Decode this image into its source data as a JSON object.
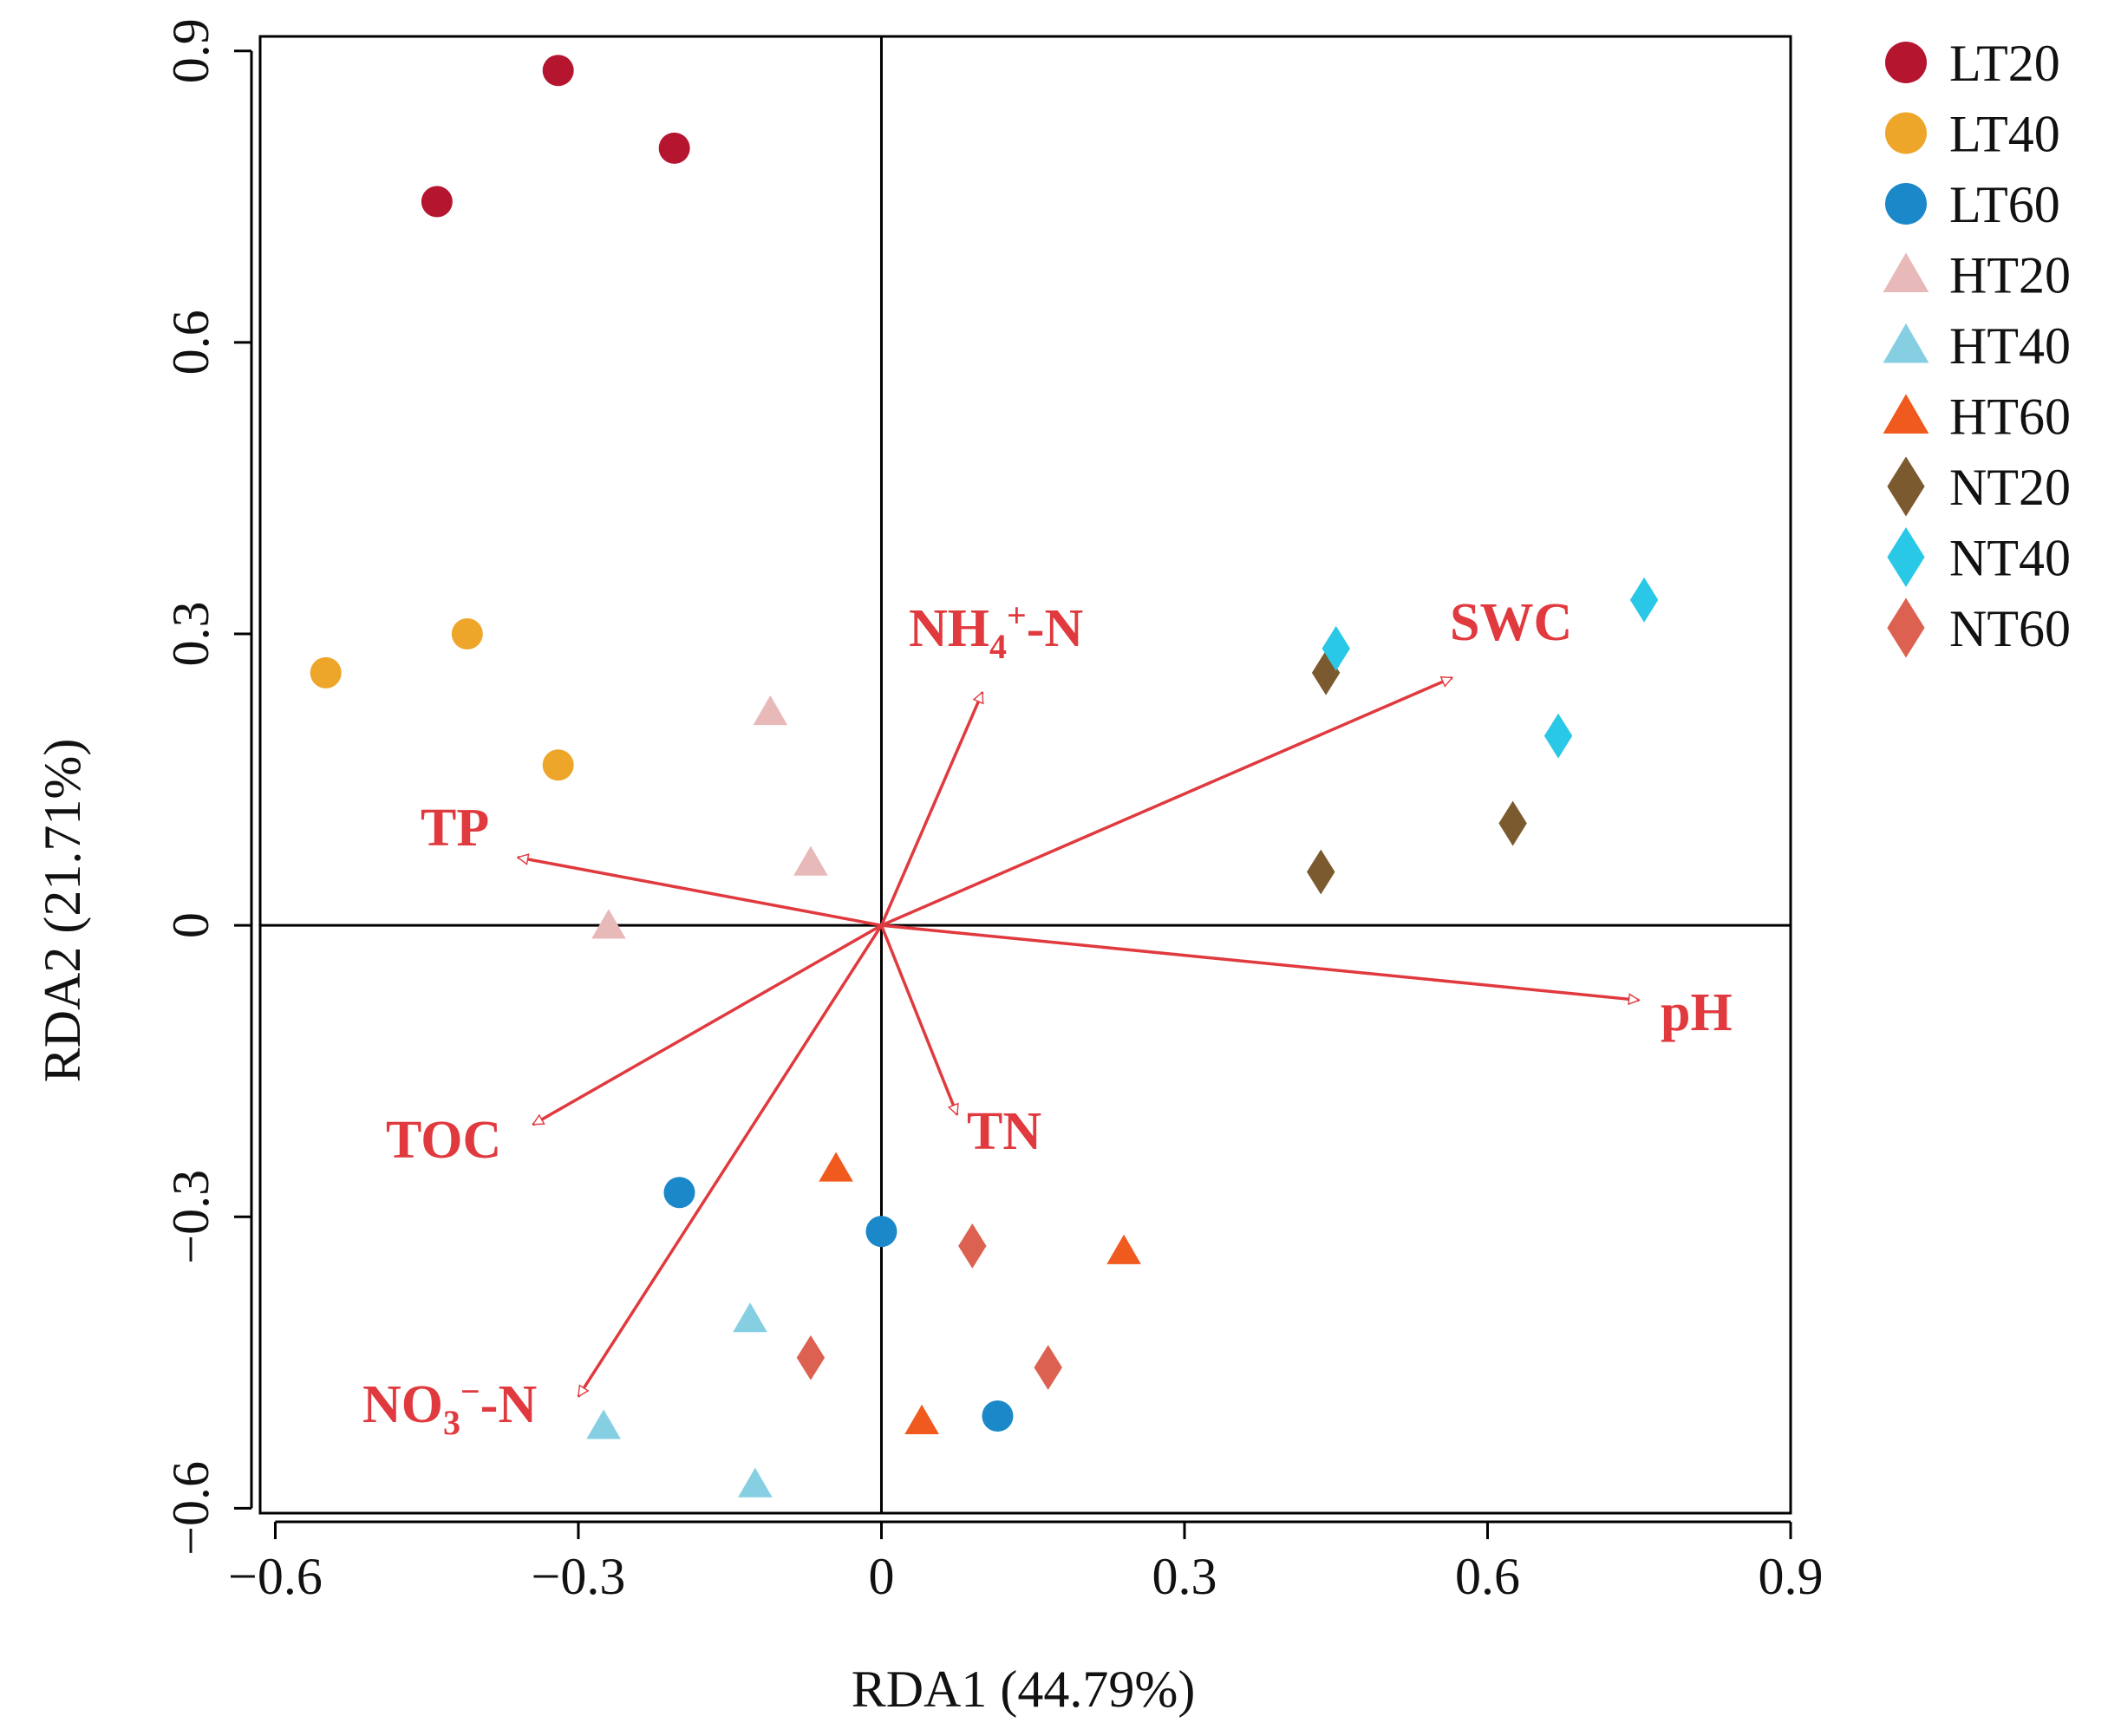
{
  "chart_data": {
    "type": "scatter",
    "title": "",
    "xlabel": "RDA1 (44.79%)",
    "ylabel": "RDA2 (21.71%)",
    "xlim": [
      -0.615,
      0.9
    ],
    "ylim": [
      -0.605,
      0.915
    ],
    "xticks": [
      -0.6,
      -0.3,
      0,
      0.3,
      0.6,
      0.9
    ],
    "xtick_labels": [
      "−0.6",
      "−0.3",
      "0",
      "0.3",
      "0.6",
      "0.9"
    ],
    "yticks": [
      -0.6,
      -0.3,
      0,
      0.3,
      0.6,
      0.9
    ],
    "ytick_labels": [
      "−0.6",
      "−0.3",
      "0",
      "0.3",
      "0.6",
      "0.9"
    ],
    "grid": false,
    "legend_position": "right",
    "arrow_color": "#e0393e",
    "series": [
      {
        "name": "LT20",
        "shape": "circle",
        "color": "#b5152e",
        "points": [
          [
            -0.32,
            0.88
          ],
          [
            -0.205,
            0.8
          ],
          [
            -0.44,
            0.745
          ]
        ]
      },
      {
        "name": "LT40",
        "shape": "circle",
        "color": "#eda62a",
        "points": [
          [
            -0.41,
            0.3
          ],
          [
            -0.55,
            0.26
          ],
          [
            -0.32,
            0.165
          ]
        ]
      },
      {
        "name": "LT60",
        "shape": "circle",
        "color": "#1a88c9",
        "points": [
          [
            -0.2,
            -0.275
          ],
          [
            0.0,
            -0.315
          ],
          [
            0.115,
            -0.505
          ]
        ]
      },
      {
        "name": "HT20",
        "shape": "triangle",
        "color": "#e8b9b9",
        "points": [
          [
            -0.11,
            0.22
          ],
          [
            -0.07,
            0.065
          ],
          [
            -0.27,
            0.0
          ]
        ]
      },
      {
        "name": "HT40",
        "shape": "triangle",
        "color": "#86cfe3",
        "points": [
          [
            -0.13,
            -0.405
          ],
          [
            -0.275,
            -0.515
          ],
          [
            -0.125,
            -0.575
          ]
        ]
      },
      {
        "name": "HT60",
        "shape": "triangle",
        "color": "#f05a1f",
        "points": [
          [
            -0.045,
            -0.25
          ],
          [
            0.24,
            -0.335
          ],
          [
            0.04,
            -0.51
          ]
        ]
      },
      {
        "name": "NT20",
        "shape": "diamond",
        "color": "#7b5a2f",
        "points": [
          [
            0.44,
            0.26
          ],
          [
            0.625,
            0.105
          ],
          [
            0.435,
            0.055
          ]
        ]
      },
      {
        "name": "NT40",
        "shape": "diamond",
        "color": "#29c8e6",
        "points": [
          [
            0.755,
            0.335
          ],
          [
            0.45,
            0.285
          ],
          [
            0.67,
            0.195
          ]
        ]
      },
      {
        "name": "NT60",
        "shape": "diamond",
        "color": "#dd6150",
        "points": [
          [
            0.09,
            -0.33
          ],
          [
            -0.07,
            -0.445
          ],
          [
            0.165,
            -0.455
          ]
        ]
      }
    ],
    "env_vectors": [
      {
        "name": "SWC",
        "x": 0.565,
        "y": 0.255
      },
      {
        "name": "pH",
        "x": 0.75,
        "y": -0.077
      },
      {
        "name": "TP",
        "x": -0.36,
        "y": 0.07
      },
      {
        "name": "TOC",
        "x": -0.345,
        "y": -0.205
      },
      {
        "name": "TN",
        "x": 0.075,
        "y": -0.195
      },
      {
        "name": "NO3-N",
        "x": -0.3,
        "y": -0.485
      },
      {
        "name": "NH4+-N",
        "x": 0.1,
        "y": 0.24
      }
    ]
  }
}
